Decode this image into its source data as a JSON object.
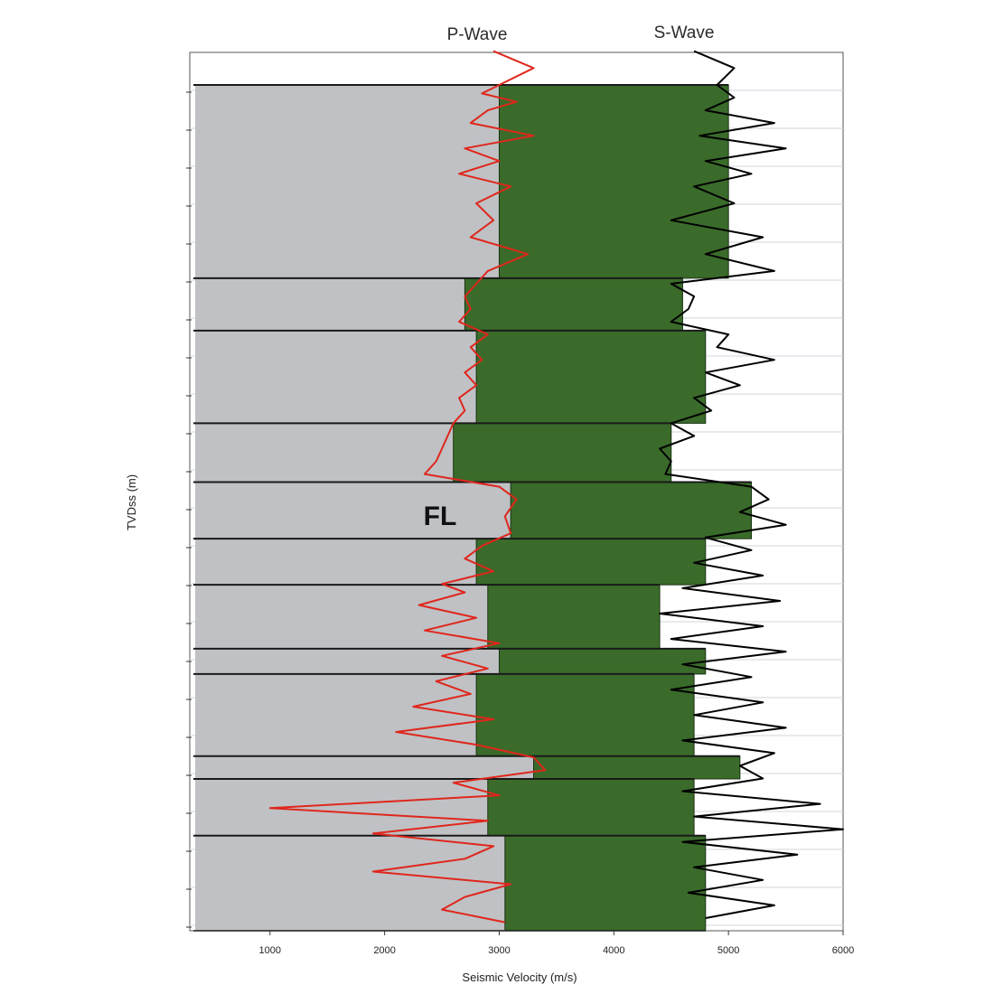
{
  "chart_data": {
    "type": "line",
    "xlabel": "Seismic Velocity (m/s)",
    "ylabel": "TVDss (m)",
    "xlim": [
      300,
      6000
    ],
    "x_ticks": [
      1000,
      2000,
      3000,
      4000,
      5000,
      6000
    ],
    "y_ticks": [],
    "grid": true,
    "legend": "none",
    "series_labels": [
      {
        "name": "P-Wave",
        "color": "#e0261c"
      },
      {
        "name": "S-Wave",
        "color": "#000000"
      }
    ],
    "annotations": [
      {
        "text": "FL"
      }
    ],
    "colors": {
      "upper_fill": "#bfc1c4",
      "interval_fill": "#3a6b2a",
      "p_wave": "#e0261c",
      "s_wave": "#000000",
      "boundary": "#1a1a1a"
    },
    "intervals": [
      {
        "top": 0.0,
        "bottom": 0.2285,
        "p_velocity": 3000,
        "s_velocity": 5000
      },
      {
        "top": 0.2285,
        "bottom": 0.2905,
        "p_velocity": 2700,
        "s_velocity": 4600
      },
      {
        "top": 0.2905,
        "bottom": 0.4,
        "p_velocity": 2800,
        "s_velocity": 4800
      },
      {
        "top": 0.4,
        "bottom": 0.4695,
        "p_velocity": 2600,
        "s_velocity": 4500
      },
      {
        "top": 0.4695,
        "bottom": 0.5365,
        "p_velocity": 3100,
        "s_velocity": 5200
      },
      {
        "top": 0.5365,
        "bottom": 0.591,
        "p_velocity": 2800,
        "s_velocity": 4800
      },
      {
        "top": 0.591,
        "bottom": 0.6665,
        "p_velocity": 2900,
        "s_velocity": 4400
      },
      {
        "top": 0.6665,
        "bottom": 0.6965,
        "p_velocity": 3000,
        "s_velocity": 4800
      },
      {
        "top": 0.6965,
        "bottom": 0.7935,
        "p_velocity": 2800,
        "s_velocity": 4700
      },
      {
        "top": 0.7935,
        "bottom": 0.8205,
        "p_velocity": 3300,
        "s_velocity": 5100
      },
      {
        "top": 0.8205,
        "bottom": 0.8875,
        "p_velocity": 2900,
        "s_velocity": 4700
      },
      {
        "top": 0.8875,
        "bottom": 1.0,
        "p_velocity": 3050,
        "s_velocity": 4800
      }
    ],
    "p_wave_log": [
      [
        -0.04,
        2950
      ],
      [
        -0.02,
        3300
      ],
      [
        0.0,
        3000
      ],
      [
        0.01,
        2850
      ],
      [
        0.02,
        3150
      ],
      [
        0.03,
        2900
      ],
      [
        0.045,
        2750
      ],
      [
        0.06,
        3300
      ],
      [
        0.075,
        2700
      ],
      [
        0.09,
        3000
      ],
      [
        0.105,
        2650
      ],
      [
        0.12,
        3100
      ],
      [
        0.14,
        2800
      ],
      [
        0.16,
        2950
      ],
      [
        0.18,
        2750
      ],
      [
        0.2,
        3250
      ],
      [
        0.22,
        2900
      ],
      [
        0.235,
        2800
      ],
      [
        0.25,
        2700
      ],
      [
        0.265,
        2750
      ],
      [
        0.28,
        2650
      ],
      [
        0.295,
        2900
      ],
      [
        0.31,
        2750
      ],
      [
        0.325,
        2850
      ],
      [
        0.34,
        2700
      ],
      [
        0.355,
        2800
      ],
      [
        0.37,
        2650
      ],
      [
        0.385,
        2700
      ],
      [
        0.4,
        2600
      ],
      [
        0.415,
        2550
      ],
      [
        0.43,
        2500
      ],
      [
        0.445,
        2450
      ],
      [
        0.46,
        2350
      ],
      [
        0.475,
        3000
      ],
      [
        0.49,
        3150
      ],
      [
        0.51,
        3050
      ],
      [
        0.53,
        3100
      ],
      [
        0.545,
        2850
      ],
      [
        0.56,
        2700
      ],
      [
        0.575,
        2950
      ],
      [
        0.59,
        2500
      ],
      [
        0.6,
        2700
      ],
      [
        0.615,
        2300
      ],
      [
        0.63,
        2800
      ],
      [
        0.645,
        2350
      ],
      [
        0.66,
        3000
      ],
      [
        0.675,
        2500
      ],
      [
        0.69,
        2900
      ],
      [
        0.705,
        2450
      ],
      [
        0.72,
        2750
      ],
      [
        0.735,
        2250
      ],
      [
        0.75,
        2950
      ],
      [
        0.765,
        2100
      ],
      [
        0.78,
        2800
      ],
      [
        0.795,
        3300
      ],
      [
        0.81,
        3400
      ],
      [
        0.825,
        2600
      ],
      [
        0.84,
        3000
      ],
      [
        0.855,
        1000
      ],
      [
        0.87,
        2900
      ],
      [
        0.885,
        1900
      ],
      [
        0.9,
        2950
      ],
      [
        0.915,
        2700
      ],
      [
        0.93,
        1900
      ],
      [
        0.945,
        3100
      ],
      [
        0.96,
        2700
      ],
      [
        0.975,
        2500
      ],
      [
        0.99,
        3050
      ]
    ],
    "s_wave_log": [
      [
        -0.04,
        4700
      ],
      [
        -0.02,
        5050
      ],
      [
        0.0,
        4900
      ],
      [
        0.015,
        5050
      ],
      [
        0.03,
        4800
      ],
      [
        0.045,
        5400
      ],
      [
        0.06,
        4750
      ],
      [
        0.075,
        5500
      ],
      [
        0.09,
        4800
      ],
      [
        0.105,
        5200
      ],
      [
        0.12,
        4700
      ],
      [
        0.14,
        5050
      ],
      [
        0.16,
        4500
      ],
      [
        0.18,
        5300
      ],
      [
        0.2,
        4800
      ],
      [
        0.22,
        5400
      ],
      [
        0.235,
        4500
      ],
      [
        0.25,
        4700
      ],
      [
        0.265,
        4650
      ],
      [
        0.28,
        4500
      ],
      [
        0.295,
        5000
      ],
      [
        0.31,
        4900
      ],
      [
        0.325,
        5400
      ],
      [
        0.34,
        4800
      ],
      [
        0.355,
        5100
      ],
      [
        0.37,
        4700
      ],
      [
        0.385,
        4850
      ],
      [
        0.4,
        4500
      ],
      [
        0.415,
        4700
      ],
      [
        0.43,
        4400
      ],
      [
        0.445,
        4500
      ],
      [
        0.46,
        4450
      ],
      [
        0.475,
        5200
      ],
      [
        0.49,
        5350
      ],
      [
        0.505,
        5100
      ],
      [
        0.52,
        5500
      ],
      [
        0.535,
        4800
      ],
      [
        0.55,
        5200
      ],
      [
        0.565,
        4700
      ],
      [
        0.58,
        5300
      ],
      [
        0.595,
        4600
      ],
      [
        0.61,
        5450
      ],
      [
        0.625,
        4400
      ],
      [
        0.64,
        5300
      ],
      [
        0.655,
        4500
      ],
      [
        0.67,
        5500
      ],
      [
        0.685,
        4600
      ],
      [
        0.7,
        5200
      ],
      [
        0.715,
        4500
      ],
      [
        0.73,
        5300
      ],
      [
        0.745,
        4700
      ],
      [
        0.76,
        5500
      ],
      [
        0.775,
        4600
      ],
      [
        0.79,
        5400
      ],
      [
        0.805,
        5100
      ],
      [
        0.82,
        5300
      ],
      [
        0.835,
        4600
      ],
      [
        0.85,
        5800
      ],
      [
        0.865,
        4700
      ],
      [
        0.88,
        6000
      ],
      [
        0.895,
        4600
      ],
      [
        0.91,
        5600
      ],
      [
        0.925,
        4700
      ],
      [
        0.94,
        5300
      ],
      [
        0.955,
        4650
      ],
      [
        0.97,
        5400
      ],
      [
        0.985,
        4800
      ]
    ]
  },
  "titles": {
    "p_wave": "P-Wave",
    "s_wave": "S-Wave"
  },
  "fl_label": "FL"
}
